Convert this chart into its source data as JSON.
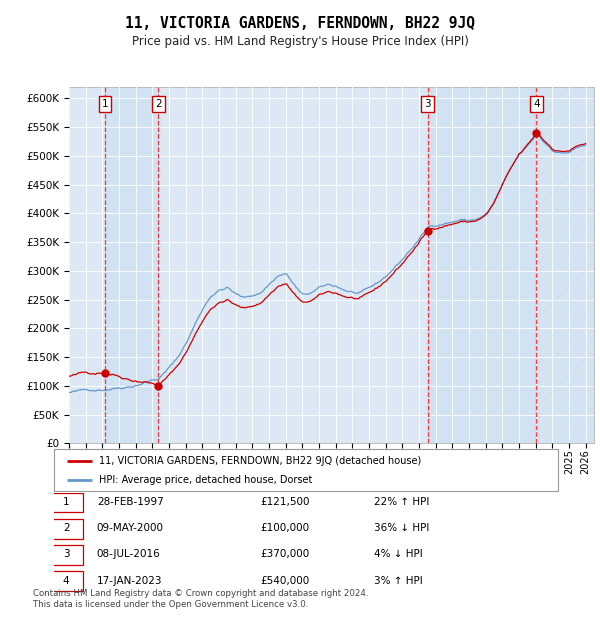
{
  "title": "11, VICTORIA GARDENS, FERNDOWN, BH22 9JQ",
  "subtitle": "Price paid vs. HM Land Registry's House Price Index (HPI)",
  "ylim": [
    0,
    620000
  ],
  "yticks": [
    0,
    50000,
    100000,
    150000,
    200000,
    250000,
    300000,
    350000,
    400000,
    450000,
    500000,
    550000,
    600000
  ],
  "xlim_start": 1995.0,
  "xlim_end": 2026.5,
  "transactions": [
    {
      "num": 1,
      "date": "28-FEB-1997",
      "price": 121500,
      "year": 1997.16,
      "pct": "22%",
      "dir": "↑"
    },
    {
      "num": 2,
      "date": "09-MAY-2000",
      "price": 100000,
      "year": 2000.36,
      "pct": "36%",
      "dir": "↓"
    },
    {
      "num": 3,
      "date": "08-JUL-2016",
      "price": 370000,
      "year": 2016.52,
      "pct": "4%",
      "dir": "↓"
    },
    {
      "num": 4,
      "date": "17-JAN-2023",
      "price": 540000,
      "year": 2023.05,
      "pct": "3%",
      "dir": "↑"
    }
  ],
  "hpi_label": "HPI: Average price, detached house, Dorset",
  "property_label": "11, VICTORIA GARDENS, FERNDOWN, BH22 9JQ (detached house)",
  "hpi_color": "#6699cc",
  "property_color": "#cc0000",
  "plot_bg": "#dce9f5",
  "footer": "Contains HM Land Registry data © Crown copyright and database right 2024.\nThis data is licensed under the Open Government Licence v3.0."
}
